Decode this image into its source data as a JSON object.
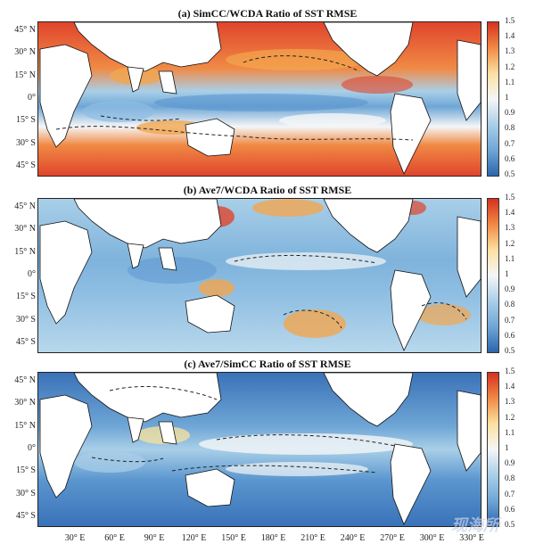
{
  "panels": [
    {
      "title": "(a) SimCC/WCDA Ratio of SST RMSE",
      "theme": "high"
    },
    {
      "title": "(b) Ave7/WCDA Ratio of SST RMSE",
      "theme": "mid"
    },
    {
      "title": "(c) Ave7/SimCC Ratio of SST RMSE",
      "theme": "low"
    }
  ],
  "lat_labels": [
    "45° N",
    "30° N",
    "15° N",
    "0°",
    "15° S",
    "30° S",
    "45° S"
  ],
  "lon_labels": [
    "30° E",
    "60° E",
    "90° E",
    "120° E",
    "150° E",
    "180° E",
    "210° E",
    "240° E",
    "270° E",
    "300° E",
    "330° E"
  ],
  "colorbar_ticks": [
    "1.5",
    "1.4",
    "1.3",
    "1.2",
    "1.1",
    "1",
    "0.9",
    "0.8",
    "0.7",
    "0.6",
    "0.5"
  ],
  "colorbar_range": [
    0.5,
    1.5
  ],
  "colors": {
    "land": "#ffffff",
    "ocean_low": "#3a72b8",
    "ocean_mid": "#a9cfe8",
    "ocean_white": "#f4f6f7",
    "ocean_high": "#e0452c",
    "ocean_orange": "#f3a64f"
  },
  "watermark": "现海所"
}
